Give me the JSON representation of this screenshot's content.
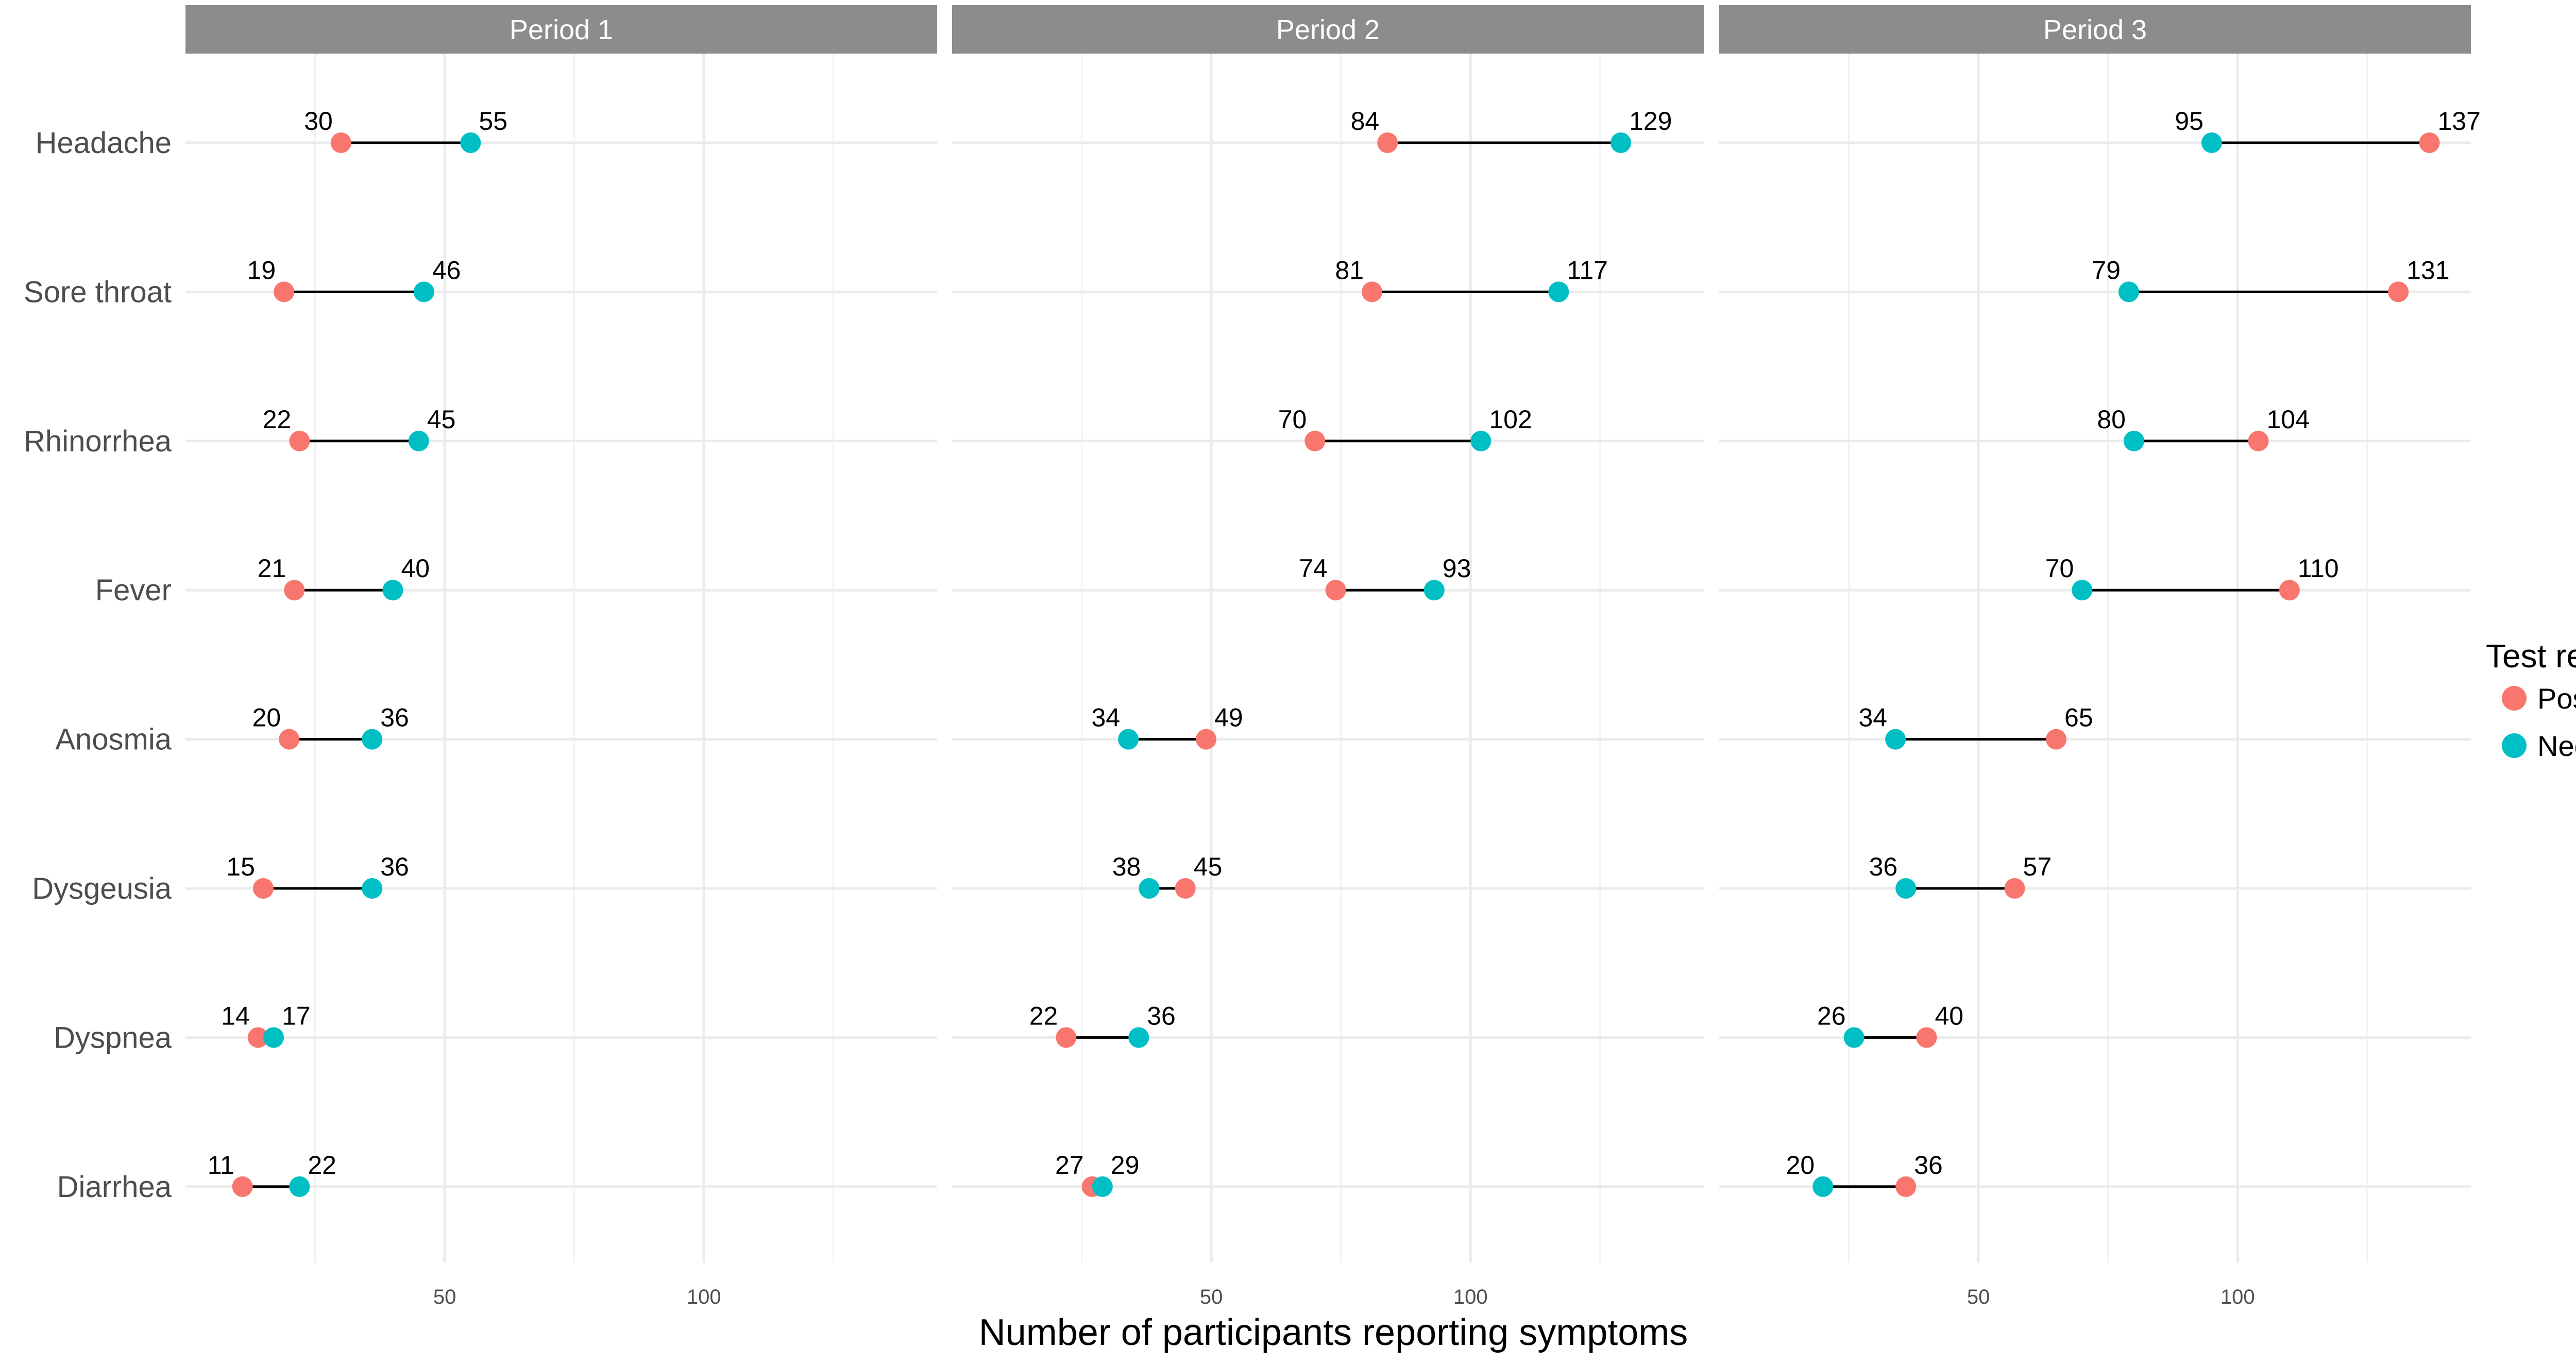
{
  "chart_data": {
    "type": "dumbbell",
    "xlabel": "Number of participants reporting symptoms",
    "ylabel": "",
    "xlim": [
      0,
      145
    ],
    "x_ticks": [
      50,
      100
    ],
    "legend": {
      "title": "Test result",
      "position": "right",
      "entries": [
        {
          "name": "Positive",
          "color": "#F8766D"
        },
        {
          "name": "Negative",
          "color": "#00BFC4"
        }
      ]
    },
    "categories": [
      "Headache",
      "Sore throat",
      "Rhinorrhea",
      "Fever",
      "Anosmia",
      "Dysgeusia",
      "Dyspnea",
      "Diarrhea"
    ],
    "panels": [
      {
        "title": "Period 1",
        "series": [
          {
            "name": "Positive",
            "values": [
              30,
              19,
              22,
              21,
              20,
              15,
              14,
              11
            ]
          },
          {
            "name": "Negative",
            "values": [
              55,
              46,
              45,
              40,
              36,
              36,
              17,
              22
            ]
          }
        ]
      },
      {
        "title": "Period 2",
        "series": [
          {
            "name": "Positive",
            "values": [
              84,
              81,
              70,
              74,
              49,
              45,
              22,
              27
            ]
          },
          {
            "name": "Negative",
            "values": [
              129,
              117,
              102,
              93,
              34,
              38,
              36,
              29
            ]
          }
        ]
      },
      {
        "title": "Period 3",
        "series": [
          {
            "name": "Positive",
            "values": [
              137,
              131,
              104,
              110,
              65,
              57,
              40,
              36
            ]
          },
          {
            "name": "Negative",
            "values": [
              95,
              79,
              80,
              70,
              34,
              36,
              26,
              20
            ]
          }
        ]
      }
    ]
  }
}
